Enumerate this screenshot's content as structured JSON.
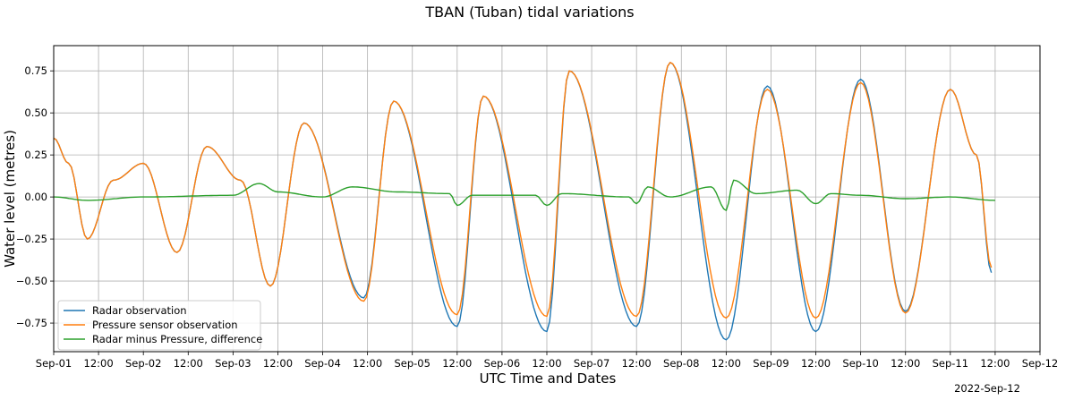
{
  "chart_data": {
    "type": "line",
    "title": "TBAN (Tuban) tidal variations",
    "xlabel": "UTC Time and Dates",
    "ylabel": "Water level (metres)",
    "x_range": [
      "2022-09-01 00:00",
      "2022-09-12 00:00"
    ],
    "ylim": [
      -0.92,
      0.9
    ],
    "grid": true,
    "legend_position": "lower-left",
    "x_ticks": [
      {
        "t": "2022-09-01 00:00",
        "label": "Sep-01"
      },
      {
        "t": "2022-09-01 12:00",
        "label": "12:00"
      },
      {
        "t": "2022-09-02 00:00",
        "label": "Sep-02"
      },
      {
        "t": "2022-09-02 12:00",
        "label": "12:00"
      },
      {
        "t": "2022-09-03 00:00",
        "label": "Sep-03"
      },
      {
        "t": "2022-09-03 12:00",
        "label": "12:00"
      },
      {
        "t": "2022-09-04 00:00",
        "label": "Sep-04"
      },
      {
        "t": "2022-09-04 12:00",
        "label": "12:00"
      },
      {
        "t": "2022-09-05 00:00",
        "label": "Sep-05"
      },
      {
        "t": "2022-09-05 12:00",
        "label": "12:00"
      },
      {
        "t": "2022-09-06 00:00",
        "label": "Sep-06"
      },
      {
        "t": "2022-09-06 12:00",
        "label": "12:00"
      },
      {
        "t": "2022-09-07 00:00",
        "label": "Sep-07"
      },
      {
        "t": "2022-09-07 12:00",
        "label": "12:00"
      },
      {
        "t": "2022-09-08 00:00",
        "label": "Sep-08"
      },
      {
        "t": "2022-09-08 12:00",
        "label": "12:00"
      },
      {
        "t": "2022-09-09 00:00",
        "label": "Sep-09"
      },
      {
        "t": "2022-09-09 12:00",
        "label": "12:00"
      },
      {
        "t": "2022-09-10 00:00",
        "label": "Sep-10"
      },
      {
        "t": "2022-09-10 12:00",
        "label": "12:00"
      },
      {
        "t": "2022-09-11 00:00",
        "label": "Sep-11"
      },
      {
        "t": "2022-09-11 12:00",
        "label": "12:00"
      },
      {
        "t": "2022-09-12 00:00",
        "label": "Sep-12"
      }
    ],
    "x_offset_label": "2022-Sep-12",
    "y_ticks": [
      -0.75,
      -0.5,
      -0.25,
      0.0,
      0.25,
      0.5,
      0.75
    ],
    "y_tick_labels": [
      "−0.75",
      "−0.50",
      "−0.25",
      "0.00",
      "0.25",
      "0.50",
      "0.75"
    ],
    "series": [
      {
        "name": "Radar observation",
        "color": "#1f77b4",
        "points": [
          [
            "2022-09-01 00:00",
            0.35
          ],
          [
            "2022-09-01 04:00",
            0.2
          ],
          [
            "2022-09-01 09:00",
            -0.25
          ],
          [
            "2022-09-01 16:00",
            0.1
          ],
          [
            "2022-09-02 00:00",
            0.2
          ],
          [
            "2022-09-02 09:00",
            -0.33
          ],
          [
            "2022-09-02 17:00",
            0.3
          ],
          [
            "2022-09-03 02:00",
            0.1
          ],
          [
            "2022-09-03 10:00",
            -0.53
          ],
          [
            "2022-09-03 19:00",
            0.44
          ],
          [
            "2022-09-04 11:00",
            -0.6
          ],
          [
            "2022-09-04 19:00",
            0.57
          ],
          [
            "2022-09-05 12:00",
            -0.77
          ],
          [
            "2022-09-05 19:00",
            0.6
          ],
          [
            "2022-09-06 12:00",
            -0.8
          ],
          [
            "2022-09-06 18:00",
            0.75
          ],
          [
            "2022-09-07 12:00",
            -0.77
          ],
          [
            "2022-09-07 21:00",
            0.8
          ],
          [
            "2022-09-08 12:00",
            -0.85
          ],
          [
            "2022-09-08 23:00",
            0.66
          ],
          [
            "2022-09-09 12:00",
            -0.8
          ],
          [
            "2022-09-10 00:00",
            0.7
          ],
          [
            "2022-09-10 12:00",
            -0.68
          ],
          [
            "2022-09-11 00:00",
            0.64
          ],
          [
            "2022-09-11 07:00",
            0.25
          ],
          [
            "2022-09-11 11:00",
            -0.45
          ]
        ]
      },
      {
        "name": "Pressure sensor observation",
        "color": "#ff7f0e",
        "points": [
          [
            "2022-09-01 00:00",
            0.35
          ],
          [
            "2022-09-01 04:00",
            0.2
          ],
          [
            "2022-09-01 09:00",
            -0.25
          ],
          [
            "2022-09-01 16:00",
            0.1
          ],
          [
            "2022-09-02 00:00",
            0.2
          ],
          [
            "2022-09-02 09:00",
            -0.33
          ],
          [
            "2022-09-02 17:00",
            0.3
          ],
          [
            "2022-09-03 02:00",
            0.1
          ],
          [
            "2022-09-03 10:00",
            -0.53
          ],
          [
            "2022-09-03 19:00",
            0.44
          ],
          [
            "2022-09-04 11:00",
            -0.62
          ],
          [
            "2022-09-04 19:00",
            0.57
          ],
          [
            "2022-09-05 12:00",
            -0.7
          ],
          [
            "2022-09-05 19:00",
            0.6
          ],
          [
            "2022-09-06 12:00",
            -0.71
          ],
          [
            "2022-09-06 18:00",
            0.75
          ],
          [
            "2022-09-07 12:00",
            -0.71
          ],
          [
            "2022-09-07 21:00",
            0.8
          ],
          [
            "2022-09-08 12:00",
            -0.72
          ],
          [
            "2022-09-08 23:00",
            0.64
          ],
          [
            "2022-09-09 12:00",
            -0.72
          ],
          [
            "2022-09-10 00:00",
            0.68
          ],
          [
            "2022-09-10 12:00",
            -0.69
          ],
          [
            "2022-09-11 00:00",
            0.64
          ],
          [
            "2022-09-11 07:00",
            0.25
          ],
          [
            "2022-09-11 11:00",
            -0.42
          ]
        ]
      },
      {
        "name": "Radar minus Pressure, difference",
        "color": "#2ca02c",
        "points": [
          [
            "2022-09-01 00:00",
            0.0
          ],
          [
            "2022-09-01 09:00",
            -0.02
          ],
          [
            "2022-09-02 00:00",
            0.0
          ],
          [
            "2022-09-03 00:00",
            0.01
          ],
          [
            "2022-09-03 07:00",
            0.08
          ],
          [
            "2022-09-03 12:00",
            0.03
          ],
          [
            "2022-09-04 00:00",
            0.0
          ],
          [
            "2022-09-04 08:00",
            0.06
          ],
          [
            "2022-09-04 20:00",
            0.03
          ],
          [
            "2022-09-05 10:00",
            0.02
          ],
          [
            "2022-09-05 12:00",
            -0.05
          ],
          [
            "2022-09-05 16:00",
            0.01
          ],
          [
            "2022-09-06 09:00",
            0.01
          ],
          [
            "2022-09-06 12:00",
            -0.05
          ],
          [
            "2022-09-06 16:00",
            0.02
          ],
          [
            "2022-09-07 10:00",
            0.0
          ],
          [
            "2022-09-07 12:00",
            -0.04
          ],
          [
            "2022-09-07 15:00",
            0.06
          ],
          [
            "2022-09-07 21:00",
            0.0
          ],
          [
            "2022-09-08 08:00",
            0.06
          ],
          [
            "2022-09-08 12:00",
            -0.08
          ],
          [
            "2022-09-08 14:00",
            0.1
          ],
          [
            "2022-09-08 20:00",
            0.02
          ],
          [
            "2022-09-09 07:00",
            0.04
          ],
          [
            "2022-09-09 12:00",
            -0.04
          ],
          [
            "2022-09-09 16:00",
            0.02
          ],
          [
            "2022-09-10 00:00",
            0.01
          ],
          [
            "2022-09-10 12:00",
            -0.01
          ],
          [
            "2022-09-11 00:00",
            0.0
          ],
          [
            "2022-09-11 12:00",
            -0.02
          ]
        ]
      }
    ]
  }
}
